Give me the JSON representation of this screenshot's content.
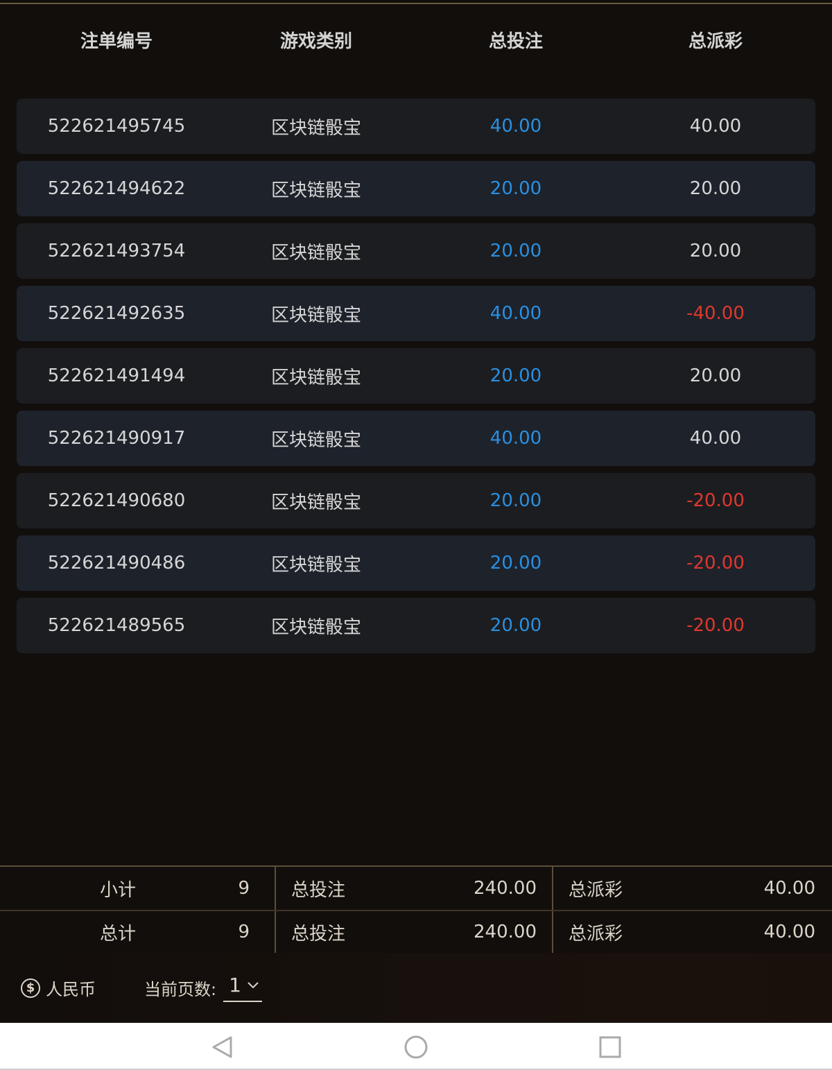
{
  "header": {
    "columns": [
      "注单编号",
      "游戏类别",
      "总投注",
      "总派彩"
    ]
  },
  "rows": [
    {
      "id": "522621495745",
      "game": "区块链骰宝",
      "bet": "40.00",
      "payout": "40.00",
      "negative": false
    },
    {
      "id": "522621494622",
      "game": "区块链骰宝",
      "bet": "20.00",
      "payout": "20.00",
      "negative": false
    },
    {
      "id": "522621493754",
      "game": "区块链骰宝",
      "bet": "20.00",
      "payout": "20.00",
      "negative": false
    },
    {
      "id": "522621492635",
      "game": "区块链骰宝",
      "bet": "40.00",
      "payout": "-40.00",
      "negative": true
    },
    {
      "id": "522621491494",
      "game": "区块链骰宝",
      "bet": "20.00",
      "payout": "20.00",
      "negative": false
    },
    {
      "id": "522621490917",
      "game": "区块链骰宝",
      "bet": "40.00",
      "payout": "40.00",
      "negative": false
    },
    {
      "id": "522621490680",
      "game": "区块链骰宝",
      "bet": "20.00",
      "payout": "-20.00",
      "negative": true
    },
    {
      "id": "522621490486",
      "game": "区块链骰宝",
      "bet": "20.00",
      "payout": "-20.00",
      "negative": true
    },
    {
      "id": "522621489565",
      "game": "区块链骰宝",
      "bet": "20.00",
      "payout": "-20.00",
      "negative": true
    }
  ],
  "summary": [
    {
      "label": "小计",
      "count": "9",
      "bet_label": "总投注",
      "bet": "240.00",
      "payout_label": "总派彩",
      "payout": "40.00"
    },
    {
      "label": "总计",
      "count": "9",
      "bet_label": "总投注",
      "bet": "240.00",
      "payout_label": "总派彩",
      "payout": "40.00"
    }
  ],
  "footer": {
    "currency_icon": "dollar-circle-icon",
    "currency": "人民币",
    "page_label": "当前页数:",
    "page": "1"
  },
  "colors": {
    "bet": "#2a8fe0",
    "negative": "#e0382e",
    "accent_line": "#6b5a40"
  },
  "nav": {
    "icons": [
      "back-icon",
      "home-icon",
      "recents-icon"
    ]
  }
}
